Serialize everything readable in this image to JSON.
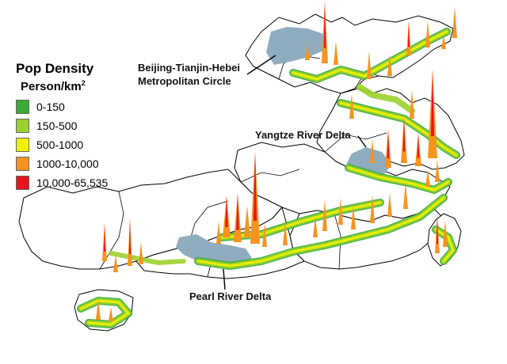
{
  "legend": {
    "title": "Pop Density",
    "unit": "Person/km",
    "unit_superscript": "2",
    "classes": [
      {
        "label": "0-150",
        "color": "#3aaa35"
      },
      {
        "label": "150-500",
        "color": "#9bd12e"
      },
      {
        "label": "500-1000",
        "color": "#f2f200"
      },
      {
        "label": "1000-10,000",
        "color": "#f7931e"
      },
      {
        "label": "10,000-65,535",
        "color": "#e8141b"
      }
    ]
  },
  "annotations": {
    "beijing_line1": "Beijing-Tianjin-Hebei",
    "beijing_line2": "Metropolitan Circle",
    "yangtze": "Yangtze River Delta",
    "pearl": "Pearl River Delta"
  },
  "colors": {
    "highlighted_region": "#8fadbf",
    "region_fill": "#ffffff",
    "region_outline": "#000000"
  }
}
